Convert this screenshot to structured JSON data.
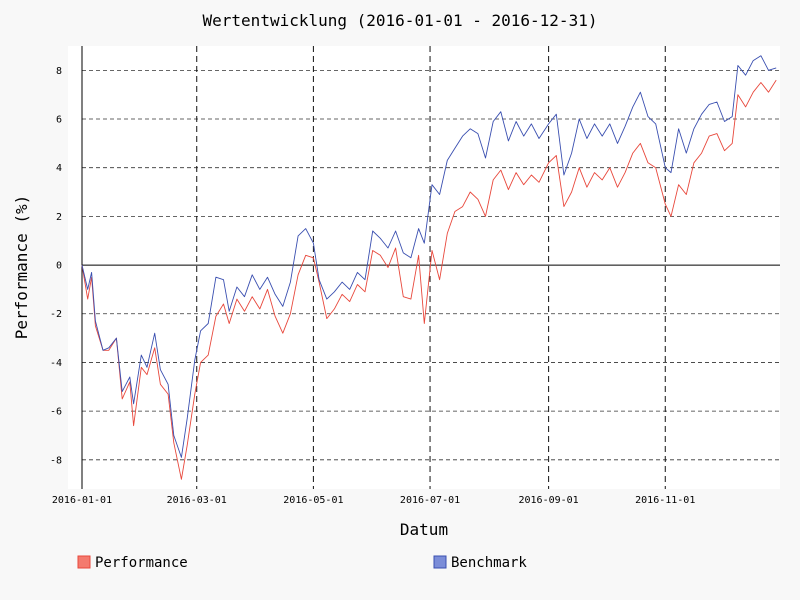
{
  "chart_data": {
    "type": "line",
    "title": "Wertentwicklung (2016-01-01 - 2016-12-31)",
    "xlabel": "Datum",
    "ylabel": "Performance (%)",
    "x_range": [
      "2016-01-01",
      "2016-12-31"
    ],
    "ylim": [
      -9.2,
      9.0
    ],
    "y_ticks": [
      -8,
      -6,
      -4,
      -2,
      0,
      2,
      4,
      6,
      8
    ],
    "x_ticks": [
      "2016-01-01",
      "2016-03-01",
      "2016-05-01",
      "2016-07-01",
      "2016-09-01",
      "2016-11-01"
    ],
    "grid": true,
    "legend_position": "bottom",
    "series": [
      {
        "name": "Performance",
        "color": "#e8483c",
        "legend_color": "#f47a6e",
        "points": [
          [
            "2016-01-01",
            0
          ],
          [
            "2016-01-04",
            -1.4
          ],
          [
            "2016-01-06",
            -0.5
          ],
          [
            "2016-01-08",
            -2.5
          ],
          [
            "2016-01-12",
            -3.5
          ],
          [
            "2016-01-15",
            -3.5
          ],
          [
            "2016-01-19",
            -3.0
          ],
          [
            "2016-01-22",
            -5.5
          ],
          [
            "2016-01-26",
            -4.8
          ],
          [
            "2016-01-28",
            -6.6
          ],
          [
            "2016-02-01",
            -4.2
          ],
          [
            "2016-02-04",
            -4.5
          ],
          [
            "2016-02-08",
            -3.4
          ],
          [
            "2016-02-11",
            -4.9
          ],
          [
            "2016-02-15",
            -5.3
          ],
          [
            "2016-02-18",
            -7.3
          ],
          [
            "2016-02-22",
            -8.8
          ],
          [
            "2016-02-25",
            -7.4
          ],
          [
            "2016-02-29",
            -5.3
          ],
          [
            "2016-03-03",
            -4.0
          ],
          [
            "2016-03-07",
            -3.7
          ],
          [
            "2016-03-11",
            -2.1
          ],
          [
            "2016-03-15",
            -1.6
          ],
          [
            "2016-03-18",
            -2.4
          ],
          [
            "2016-03-22",
            -1.4
          ],
          [
            "2016-03-26",
            -1.9
          ],
          [
            "2016-03-30",
            -1.3
          ],
          [
            "2016-04-03",
            -1.8
          ],
          [
            "2016-04-07",
            -1.0
          ],
          [
            "2016-04-11",
            -2.1
          ],
          [
            "2016-04-15",
            -2.8
          ],
          [
            "2016-04-19",
            -2.0
          ],
          [
            "2016-04-23",
            -0.4
          ],
          [
            "2016-04-27",
            0.4
          ],
          [
            "2016-05-01",
            0.3
          ],
          [
            "2016-05-04",
            -0.7
          ],
          [
            "2016-05-08",
            -2.2
          ],
          [
            "2016-05-12",
            -1.8
          ],
          [
            "2016-05-16",
            -1.2
          ],
          [
            "2016-05-20",
            -1.5
          ],
          [
            "2016-05-24",
            -0.8
          ],
          [
            "2016-05-28",
            -1.1
          ],
          [
            "2016-06-01",
            0.6
          ],
          [
            "2016-06-05",
            0.4
          ],
          [
            "2016-06-09",
            -0.1
          ],
          [
            "2016-06-13",
            0.7
          ],
          [
            "2016-06-17",
            -1.3
          ],
          [
            "2016-06-21",
            -1.4
          ],
          [
            "2016-06-25",
            0.4
          ],
          [
            "2016-06-28",
            -2.4
          ],
          [
            "2016-07-02",
            0.6
          ],
          [
            "2016-07-06",
            -0.6
          ],
          [
            "2016-07-10",
            1.3
          ],
          [
            "2016-07-14",
            2.2
          ],
          [
            "2016-07-18",
            2.4
          ],
          [
            "2016-07-22",
            3.0
          ],
          [
            "2016-07-26",
            2.7
          ],
          [
            "2016-07-30",
            2.0
          ],
          [
            "2016-08-03",
            3.5
          ],
          [
            "2016-08-07",
            3.9
          ],
          [
            "2016-08-11",
            3.1
          ],
          [
            "2016-08-15",
            3.8
          ],
          [
            "2016-08-19",
            3.3
          ],
          [
            "2016-08-23",
            3.7
          ],
          [
            "2016-08-27",
            3.4
          ],
          [
            "2016-09-01",
            4.2
          ],
          [
            "2016-09-05",
            4.5
          ],
          [
            "2016-09-09",
            2.4
          ],
          [
            "2016-09-13",
            3.0
          ],
          [
            "2016-09-17",
            4.0
          ],
          [
            "2016-09-21",
            3.2
          ],
          [
            "2016-09-25",
            3.8
          ],
          [
            "2016-09-29",
            3.5
          ],
          [
            "2016-10-03",
            4.0
          ],
          [
            "2016-10-07",
            3.2
          ],
          [
            "2016-10-11",
            3.8
          ],
          [
            "2016-10-15",
            4.6
          ],
          [
            "2016-10-19",
            5.0
          ],
          [
            "2016-10-23",
            4.2
          ],
          [
            "2016-10-27",
            4.0
          ],
          [
            "2016-11-01",
            2.5
          ],
          [
            "2016-11-04",
            2.0
          ],
          [
            "2016-11-08",
            3.3
          ],
          [
            "2016-11-12",
            2.9
          ],
          [
            "2016-11-16",
            4.2
          ],
          [
            "2016-11-20",
            4.6
          ],
          [
            "2016-11-24",
            5.3
          ],
          [
            "2016-11-28",
            5.4
          ],
          [
            "2016-12-02",
            4.7
          ],
          [
            "2016-12-06",
            5.0
          ],
          [
            "2016-12-09",
            7.0
          ],
          [
            "2016-12-13",
            6.5
          ],
          [
            "2016-12-17",
            7.1
          ],
          [
            "2016-12-21",
            7.5
          ],
          [
            "2016-12-25",
            7.1
          ],
          [
            "2016-12-29",
            7.6
          ]
        ]
      },
      {
        "name": "Benchmark",
        "color": "#3a4fb0",
        "legend_color": "#7b8dd8",
        "points": [
          [
            "2016-01-01",
            0
          ],
          [
            "2016-01-04",
            -1.0
          ],
          [
            "2016-01-06",
            -0.3
          ],
          [
            "2016-01-08",
            -2.3
          ],
          [
            "2016-01-12",
            -3.5
          ],
          [
            "2016-01-15",
            -3.4
          ],
          [
            "2016-01-19",
            -3.0
          ],
          [
            "2016-01-22",
            -5.2
          ],
          [
            "2016-01-26",
            -4.6
          ],
          [
            "2016-01-28",
            -5.7
          ],
          [
            "2016-02-01",
            -3.7
          ],
          [
            "2016-02-04",
            -4.2
          ],
          [
            "2016-02-08",
            -2.8
          ],
          [
            "2016-02-11",
            -4.3
          ],
          [
            "2016-02-15",
            -4.9
          ],
          [
            "2016-02-18",
            -7.0
          ],
          [
            "2016-02-22",
            -7.9
          ],
          [
            "2016-02-25",
            -6.3
          ],
          [
            "2016-02-29",
            -3.9
          ],
          [
            "2016-03-03",
            -2.7
          ],
          [
            "2016-03-07",
            -2.4
          ],
          [
            "2016-03-11",
            -0.5
          ],
          [
            "2016-03-15",
            -0.6
          ],
          [
            "2016-03-18",
            -1.9
          ],
          [
            "2016-03-22",
            -0.9
          ],
          [
            "2016-03-26",
            -1.3
          ],
          [
            "2016-03-30",
            -0.4
          ],
          [
            "2016-04-03",
            -1.0
          ],
          [
            "2016-04-07",
            -0.5
          ],
          [
            "2016-04-11",
            -1.2
          ],
          [
            "2016-04-15",
            -1.7
          ],
          [
            "2016-04-19",
            -0.7
          ],
          [
            "2016-04-23",
            1.2
          ],
          [
            "2016-04-27",
            1.5
          ],
          [
            "2016-05-01",
            0.9
          ],
          [
            "2016-05-04",
            -0.6
          ],
          [
            "2016-05-08",
            -1.4
          ],
          [
            "2016-05-12",
            -1.1
          ],
          [
            "2016-05-16",
            -0.7
          ],
          [
            "2016-05-20",
            -1.0
          ],
          [
            "2016-05-24",
            -0.3
          ],
          [
            "2016-05-28",
            -0.6
          ],
          [
            "2016-06-01",
            1.4
          ],
          [
            "2016-06-05",
            1.1
          ],
          [
            "2016-06-09",
            0.7
          ],
          [
            "2016-06-13",
            1.4
          ],
          [
            "2016-06-17",
            0.5
          ],
          [
            "2016-06-21",
            0.3
          ],
          [
            "2016-06-25",
            1.5
          ],
          [
            "2016-06-28",
            0.9
          ],
          [
            "2016-07-02",
            3.3
          ],
          [
            "2016-07-06",
            2.9
          ],
          [
            "2016-07-10",
            4.3
          ],
          [
            "2016-07-14",
            4.8
          ],
          [
            "2016-07-18",
            5.3
          ],
          [
            "2016-07-22",
            5.6
          ],
          [
            "2016-07-26",
            5.4
          ],
          [
            "2016-07-30",
            4.4
          ],
          [
            "2016-08-03",
            5.9
          ],
          [
            "2016-08-07",
            6.3
          ],
          [
            "2016-08-11",
            5.1
          ],
          [
            "2016-08-15",
            5.9
          ],
          [
            "2016-08-19",
            5.3
          ],
          [
            "2016-08-23",
            5.8
          ],
          [
            "2016-08-27",
            5.2
          ],
          [
            "2016-09-01",
            5.8
          ],
          [
            "2016-09-05",
            6.2
          ],
          [
            "2016-09-09",
            3.7
          ],
          [
            "2016-09-13",
            4.6
          ],
          [
            "2016-09-17",
            6.0
          ],
          [
            "2016-09-21",
            5.2
          ],
          [
            "2016-09-25",
            5.8
          ],
          [
            "2016-09-29",
            5.3
          ],
          [
            "2016-10-03",
            5.8
          ],
          [
            "2016-10-07",
            5.0
          ],
          [
            "2016-10-11",
            5.7
          ],
          [
            "2016-10-15",
            6.5
          ],
          [
            "2016-10-19",
            7.1
          ],
          [
            "2016-10-23",
            6.1
          ],
          [
            "2016-10-27",
            5.8
          ],
          [
            "2016-11-01",
            4.0
          ],
          [
            "2016-11-04",
            3.8
          ],
          [
            "2016-11-08",
            5.6
          ],
          [
            "2016-11-12",
            4.6
          ],
          [
            "2016-11-16",
            5.6
          ],
          [
            "2016-11-20",
            6.2
          ],
          [
            "2016-11-24",
            6.6
          ],
          [
            "2016-11-28",
            6.7
          ],
          [
            "2016-12-02",
            5.9
          ],
          [
            "2016-12-06",
            6.1
          ],
          [
            "2016-12-09",
            8.2
          ],
          [
            "2016-12-13",
            7.8
          ],
          [
            "2016-12-17",
            8.4
          ],
          [
            "2016-12-21",
            8.6
          ],
          [
            "2016-12-25",
            8.0
          ],
          [
            "2016-12-29",
            8.1
          ]
        ]
      }
    ]
  }
}
